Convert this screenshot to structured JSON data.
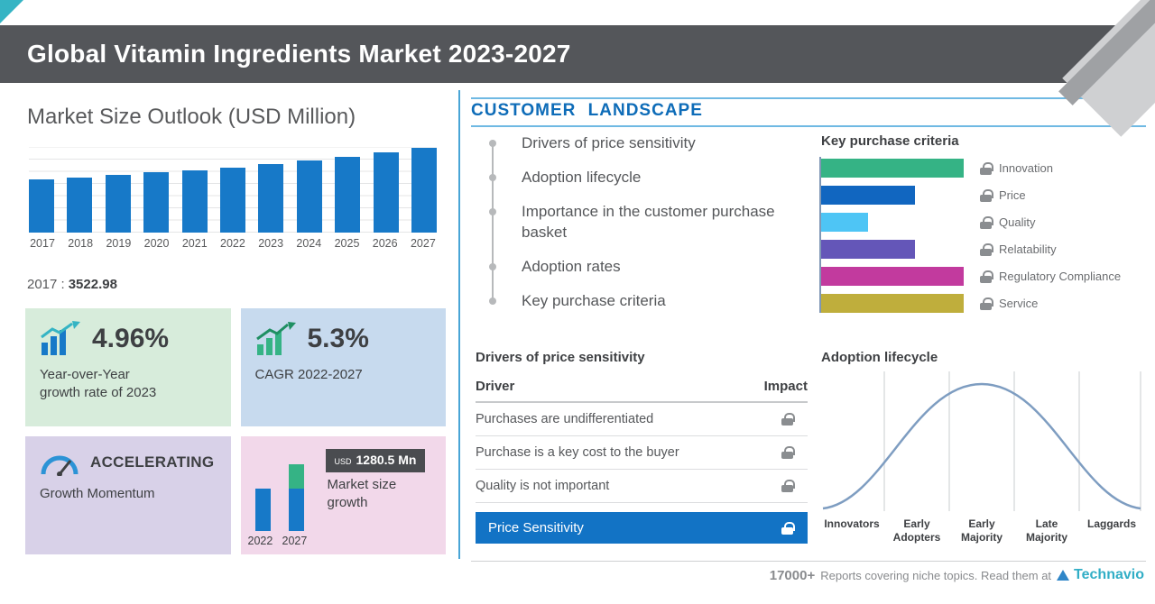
{
  "colors": {
    "header_bg": "#54565a",
    "accent_blue": "#1273c5",
    "bar_blue": "#1779c8",
    "divider_blue": "#49a5d6",
    "section_blue": "#0e6cb8",
    "teal": "#35b4c4",
    "card_green": "#d7ecdb",
    "card_blue": "#c7daee",
    "card_purple": "#d8d1e8",
    "card_pink": "#f2d8ea"
  },
  "header": {
    "title": "Global Vitamin Ingredients Market 2023-2027"
  },
  "left": {
    "chart_title": "Market Size Outlook (USD Million)",
    "base_year": {
      "label": "2017 :",
      "value": "3522.98"
    },
    "cards": {
      "yoy": {
        "value": "4.96%",
        "lines": [
          "Year-over-Year",
          "growth rate of 2023"
        ]
      },
      "cagr": {
        "value": "5.3%",
        "label": "CAGR 2022-2027"
      },
      "momentum": {
        "value": "ACCELERATING",
        "label": "Growth Momentum"
      },
      "size_growth": {
        "currency": "USD",
        "amount": "1280.5 Mn",
        "label": "Market size growth",
        "years": [
          "2022",
          "2027"
        ]
      }
    }
  },
  "right": {
    "section_title": "CUSTOMER LANDSCAPE",
    "landscape_items": [
      "Drivers of price sensitivity",
      "Adoption lifecycle",
      "Importance in the customer purchase basket",
      "Adoption rates",
      "Key purchase criteria"
    ],
    "purchase_criteria_title": "Key purchase criteria",
    "price_table": {
      "title": "Drivers of price sensitivity",
      "col_driver": "Driver",
      "col_impact": "Impact",
      "rows": [
        "Purchases are undifferentiated",
        "Purchase is a key cost to the buyer",
        "Quality is not important"
      ],
      "highlight": "Price Sensitivity"
    },
    "adoption_title": "Adoption lifecycle"
  },
  "footer": {
    "count": "17000+",
    "text": "Reports covering niche topics. Read them at",
    "brand": "Technavio"
  },
  "chart_data": [
    {
      "type": "bar",
      "title": "Market Size Outlook (USD Million)",
      "categories": [
        "2017",
        "2018",
        "2019",
        "2020",
        "2021",
        "2022",
        "2023",
        "2024",
        "2025",
        "2026",
        "2027"
      ],
      "values": [
        3522.98,
        3674,
        3832,
        3996,
        4167,
        4346,
        4562,
        4794,
        5043,
        5322,
        5627
      ],
      "ylabel": "USD Million",
      "bar_color": "#1779c8",
      "annotation": "2017 : 3522.98",
      "grid": true,
      "ylim": [
        0,
        5700
      ],
      "legend_position": "none"
    },
    {
      "type": "bar",
      "orientation": "horizontal",
      "title": "Key purchase criteria",
      "categories": [
        "Innovation",
        "Price",
        "Quality",
        "Relatability",
        "Regulatory Compliance",
        "Service"
      ],
      "values": [
        100,
        66,
        33,
        66,
        100,
        100
      ],
      "colors": [
        "#35b385",
        "#1166c0",
        "#4ec5f5",
        "#6456b8",
        "#c23a9e",
        "#bfae3c"
      ],
      "xlim": [
        0,
        100
      ],
      "grid": false
    },
    {
      "type": "line",
      "title": "Adoption lifecycle",
      "categories": [
        "Innovators",
        "Early Adopters",
        "Early Majority",
        "Late Majority",
        "Laggards"
      ],
      "values": [
        5,
        35,
        100,
        35,
        5
      ],
      "grid": true
    },
    {
      "type": "bar",
      "title": "Market size growth",
      "categories": [
        "2022",
        "2027"
      ],
      "values": [
        4346,
        5626.5
      ],
      "annotation": "USD 1280.5 Mn"
    }
  ]
}
